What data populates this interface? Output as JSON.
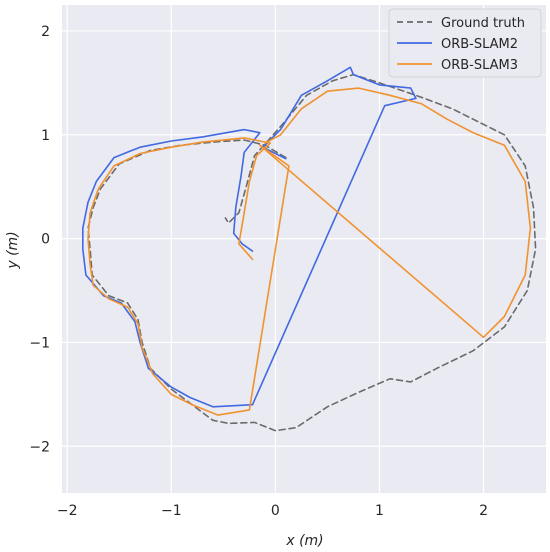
{
  "chart_data": {
    "type": "line",
    "title": "",
    "xlabel": "x (m)",
    "ylabel": "y (m)",
    "xlim": [
      -2.05,
      2.6
    ],
    "ylim": [
      -2.45,
      2.25
    ],
    "xticks": [
      -2,
      -1,
      0,
      1,
      2
    ],
    "yticks": [
      -2,
      -1,
      0,
      1,
      2
    ],
    "grid": true,
    "background": "#eaeaf2",
    "legend_position": "top-right",
    "series": [
      {
        "name": "Ground truth",
        "color": "#6b6b6b",
        "style": "dashed",
        "points": [
          [
            0.1,
            0.78
          ],
          [
            -0.1,
            0.9
          ],
          [
            -0.3,
            0.95
          ],
          [
            -0.6,
            0.93
          ],
          [
            -0.9,
            0.9
          ],
          [
            -1.2,
            0.85
          ],
          [
            -1.5,
            0.72
          ],
          [
            -1.68,
            0.48
          ],
          [
            -1.75,
            0.3
          ],
          [
            -1.8,
            0.1
          ],
          [
            -1.78,
            -0.1
          ],
          [
            -1.76,
            -0.35
          ],
          [
            -1.6,
            -0.55
          ],
          [
            -1.42,
            -0.62
          ],
          [
            -1.32,
            -0.78
          ],
          [
            -1.28,
            -1.0
          ],
          [
            -1.2,
            -1.25
          ],
          [
            -1.0,
            -1.45
          ],
          [
            -0.8,
            -1.6
          ],
          [
            -0.6,
            -1.75
          ],
          [
            -0.45,
            -1.78
          ],
          [
            -0.2,
            -1.77
          ],
          [
            0.0,
            -1.85
          ],
          [
            0.2,
            -1.82
          ],
          [
            0.5,
            -1.62
          ],
          [
            0.8,
            -1.48
          ],
          [
            1.1,
            -1.35
          ],
          [
            1.3,
            -1.38
          ],
          [
            1.55,
            -1.25
          ],
          [
            1.9,
            -1.08
          ],
          [
            2.2,
            -0.85
          ],
          [
            2.42,
            -0.5
          ],
          [
            2.5,
            -0.1
          ],
          [
            2.48,
            0.3
          ],
          [
            2.4,
            0.7
          ],
          [
            2.2,
            1.0
          ],
          [
            2.0,
            1.1
          ],
          [
            1.7,
            1.25
          ],
          [
            1.35,
            1.38
          ],
          [
            1.0,
            1.5
          ],
          [
            0.75,
            1.58
          ],
          [
            0.55,
            1.52
          ],
          [
            0.3,
            1.38
          ],
          [
            0.05,
            1.08
          ],
          [
            -0.2,
            0.8
          ],
          [
            -0.28,
            0.5
          ],
          [
            -0.35,
            0.25
          ],
          [
            -0.45,
            0.15
          ],
          [
            -0.48,
            0.2
          ]
        ]
      },
      {
        "name": "ORB-SLAM2",
        "color": "#4169e1",
        "style": "solid",
        "points": [
          [
            -0.22,
            -0.12
          ],
          [
            -0.32,
            -0.05
          ],
          [
            -0.4,
            0.05
          ],
          [
            -0.38,
            0.3
          ],
          [
            -0.33,
            0.6
          ],
          [
            -0.3,
            0.83
          ],
          [
            -0.15,
            1.02
          ],
          [
            -0.3,
            1.05
          ],
          [
            -0.7,
            0.98
          ],
          [
            -1.0,
            0.94
          ],
          [
            -1.3,
            0.88
          ],
          [
            -1.55,
            0.78
          ],
          [
            -1.72,
            0.55
          ],
          [
            -1.8,
            0.35
          ],
          [
            -1.85,
            0.1
          ],
          [
            -1.85,
            -0.1
          ],
          [
            -1.82,
            -0.35
          ],
          [
            -1.65,
            -0.55
          ],
          [
            -1.48,
            -0.62
          ],
          [
            -1.35,
            -0.8
          ],
          [
            -1.3,
            -1.0
          ],
          [
            -1.22,
            -1.25
          ],
          [
            -1.0,
            -1.43
          ],
          [
            -0.82,
            -1.53
          ],
          [
            -0.6,
            -1.62
          ],
          [
            -0.22,
            -1.6
          ],
          [
            1.05,
            1.28
          ],
          [
            1.35,
            1.35
          ],
          [
            1.3,
            1.45
          ],
          [
            1.0,
            1.48
          ],
          [
            0.75,
            1.58
          ],
          [
            0.72,
            1.65
          ],
          [
            0.5,
            1.52
          ],
          [
            0.25,
            1.38
          ],
          [
            0.05,
            1.05
          ],
          [
            -0.12,
            0.88
          ],
          [
            0.0,
            0.82
          ],
          [
            0.1,
            0.77
          ]
        ]
      },
      {
        "name": "ORB-SLAM3",
        "color": "#f0922e",
        "style": "solid",
        "points": [
          [
            -0.22,
            -0.2
          ],
          [
            -0.35,
            -0.05
          ],
          [
            -0.3,
            0.25
          ],
          [
            -0.25,
            0.55
          ],
          [
            -0.18,
            0.8
          ],
          [
            -0.05,
            0.92
          ],
          [
            -0.3,
            0.97
          ],
          [
            -0.7,
            0.93
          ],
          [
            -1.0,
            0.88
          ],
          [
            -1.3,
            0.82
          ],
          [
            -1.55,
            0.7
          ],
          [
            -1.7,
            0.48
          ],
          [
            -1.78,
            0.25
          ],
          [
            -1.8,
            0.0
          ],
          [
            -1.78,
            -0.25
          ],
          [
            -1.75,
            -0.45
          ],
          [
            -1.6,
            -0.58
          ],
          [
            -1.42,
            -0.66
          ],
          [
            -1.32,
            -0.82
          ],
          [
            -1.28,
            -1.05
          ],
          [
            -1.18,
            -1.3
          ],
          [
            -1.0,
            -1.5
          ],
          [
            -0.8,
            -1.6
          ],
          [
            -0.55,
            -1.7
          ],
          [
            -0.25,
            -1.65
          ],
          [
            0.13,
            0.7
          ],
          [
            -0.15,
            0.9
          ],
          [
            2.0,
            -0.95
          ],
          [
            2.2,
            -0.75
          ],
          [
            2.4,
            -0.35
          ],
          [
            2.45,
            0.1
          ],
          [
            2.4,
            0.55
          ],
          [
            2.2,
            0.9
          ],
          [
            1.9,
            1.02
          ],
          [
            1.65,
            1.15
          ],
          [
            1.4,
            1.3
          ],
          [
            1.1,
            1.38
          ],
          [
            0.8,
            1.45
          ],
          [
            0.5,
            1.42
          ],
          [
            0.25,
            1.25
          ],
          [
            0.05,
            1.0
          ],
          [
            -0.1,
            0.92
          ]
        ]
      }
    ]
  }
}
